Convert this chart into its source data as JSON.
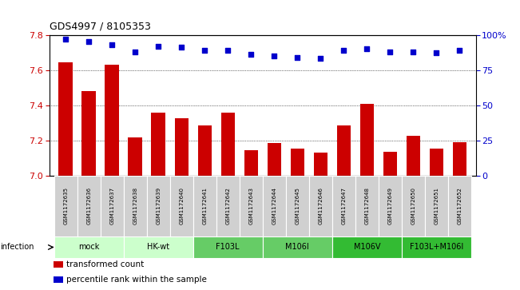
{
  "title": "GDS4997 / 8105353",
  "samples": [
    "GSM1172635",
    "GSM1172636",
    "GSM1172637",
    "GSM1172638",
    "GSM1172639",
    "GSM1172640",
    "GSM1172641",
    "GSM1172642",
    "GSM1172643",
    "GSM1172644",
    "GSM1172645",
    "GSM1172646",
    "GSM1172647",
    "GSM1172648",
    "GSM1172649",
    "GSM1172650",
    "GSM1172651",
    "GSM1172652"
  ],
  "bar_values": [
    7.645,
    7.48,
    7.63,
    7.215,
    7.355,
    7.325,
    7.285,
    7.355,
    7.145,
    7.185,
    7.155,
    7.13,
    7.285,
    7.405,
    7.135,
    7.225,
    7.155,
    7.19
  ],
  "dot_values": [
    97,
    95,
    93,
    88,
    92,
    91,
    89,
    89,
    86,
    85,
    84,
    83,
    89,
    90,
    88,
    88,
    87,
    89
  ],
  "ylim_left": [
    7.0,
    7.8
  ],
  "ylim_right": [
    0,
    100
  ],
  "yticks_left": [
    7.0,
    7.2,
    7.4,
    7.6,
    7.8
  ],
  "yticks_right": [
    0,
    25,
    50,
    75,
    100
  ],
  "bar_color": "#cc0000",
  "dot_color": "#0000cc",
  "bar_bottom": 7.0,
  "groups": [
    {
      "label": "mock",
      "start": 0,
      "end": 2,
      "color": "#ccffcc"
    },
    {
      "label": "HK-wt",
      "start": 3,
      "end": 5,
      "color": "#ccffcc"
    },
    {
      "label": "F103L",
      "start": 6,
      "end": 8,
      "color": "#66cc66"
    },
    {
      "label": "M106I",
      "start": 9,
      "end": 11,
      "color": "#66cc66"
    },
    {
      "label": "M106V",
      "start": 12,
      "end": 14,
      "color": "#33bb33"
    },
    {
      "label": "F103L+M106I",
      "start": 15,
      "end": 17,
      "color": "#33bb33"
    }
  ],
  "infection_label": "infection",
  "legend_items": [
    {
      "color": "#cc0000",
      "label": "transformed count"
    },
    {
      "color": "#0000cc",
      "label": "percentile rank within the sample"
    }
  ],
  "sample_box_color": "#d0d0d0",
  "title_fontsize": 9,
  "axis_fontsize": 8,
  "sample_fontsize": 5,
  "group_fontsize": 7,
  "legend_fontsize": 7.5
}
